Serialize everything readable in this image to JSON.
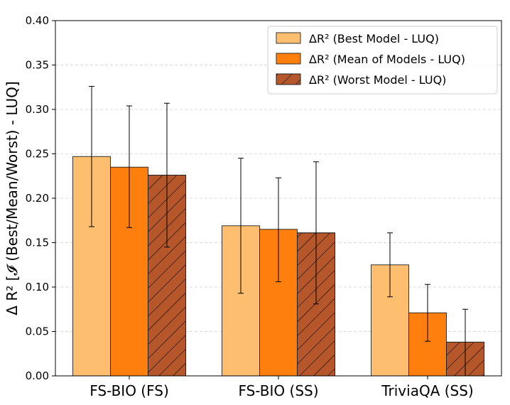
{
  "chart_data": {
    "type": "bar",
    "categories": [
      "FS-BIO (FS)",
      "FS-BIO (SS)",
      "TriviaQA (SS)"
    ],
    "ylabel": "Δ R² [𝓘 (Best/Mean/Worst) - LUQ]",
    "ylim": [
      0,
      0.4
    ],
    "yticks": [
      "0.00",
      "0.05",
      "0.10",
      "0.15",
      "0.20",
      "0.25",
      "0.30",
      "0.35",
      "0.40"
    ],
    "grid": true,
    "legend_position": "top-right",
    "series": [
      {
        "name": "ΔR² (Best Model - LUQ)",
        "color": "#fdbf6f",
        "hatch": false,
        "values": [
          0.247,
          0.169,
          0.125
        ],
        "err_low": [
          0.168,
          0.093,
          0.089
        ],
        "err_high": [
          0.326,
          0.245,
          0.161
        ]
      },
      {
        "name": "ΔR² (Mean of Models - LUQ)",
        "color": "#ff7f0e",
        "hatch": false,
        "values": [
          0.235,
          0.165,
          0.071
        ],
        "err_low": [
          0.167,
          0.106,
          0.039
        ],
        "err_high": [
          0.304,
          0.223,
          0.103
        ]
      },
      {
        "name": "ΔR² (Worst Model - LUQ)",
        "color": "#b5572a",
        "hatch": true,
        "values": [
          0.226,
          0.161,
          0.038
        ],
        "err_low": [
          0.145,
          0.081,
          0.0
        ],
        "err_high": [
          0.307,
          0.241,
          0.075
        ]
      }
    ]
  }
}
